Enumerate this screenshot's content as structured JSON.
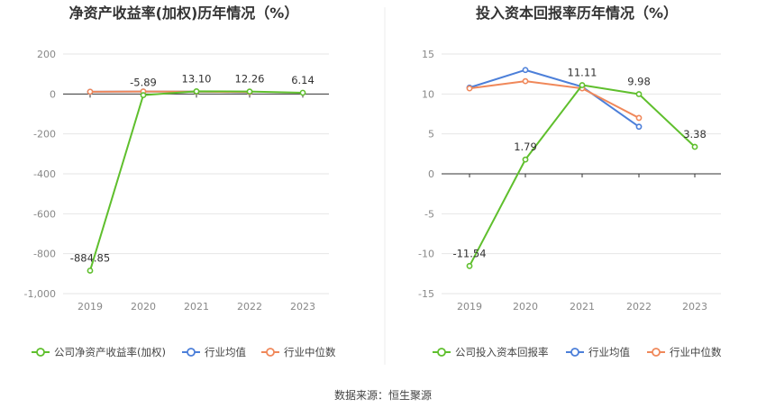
{
  "source": "数据来源：恒生聚源",
  "chart_data": [
    {
      "type": "line",
      "title": "净资产收益率(加权)历年情况（%）",
      "categories": [
        "2019",
        "2020",
        "2021",
        "2022",
        "2023"
      ],
      "yticks": [
        "200",
        "0",
        "-200",
        "-400",
        "-600",
        "-800",
        "-1,000"
      ],
      "ylim": [
        -1000,
        200
      ],
      "grid": true,
      "legend_position": "bottom",
      "series": [
        {
          "name": "公司净资产收益率(加权)",
          "color": "#5fbf2d",
          "values": [
            -884.85,
            -5.89,
            13.1,
            12.26,
            6.14
          ],
          "labels": [
            "-884.85",
            "-5.89",
            "13.10",
            "12.26",
            "6.14"
          ]
        },
        {
          "name": "行业均值",
          "color": "#4c7fd9",
          "values": [
            11.0,
            12.0,
            11.5,
            9.0,
            null
          ]
        },
        {
          "name": "行业中位数",
          "color": "#f0885a",
          "values": [
            11.2,
            12.3,
            11.8,
            9.3,
            null
          ]
        }
      ]
    },
    {
      "type": "line",
      "title": "投入资本回报率历年情况（%）",
      "categories": [
        "2019",
        "2020",
        "2021",
        "2022",
        "2023"
      ],
      "yticks": [
        "15",
        "10",
        "5",
        "0",
        "-5",
        "-10",
        "-15"
      ],
      "ylim": [
        -15,
        15
      ],
      "grid": true,
      "legend_position": "bottom",
      "series": [
        {
          "name": "公司投入资本回报率",
          "color": "#5fbf2d",
          "values": [
            -11.54,
            1.79,
            11.11,
            9.98,
            3.38
          ],
          "labels": [
            "-11.54",
            "1.79",
            "11.11",
            "9.98",
            "3.38"
          ]
        },
        {
          "name": "行业均值",
          "color": "#4c7fd9",
          "values": [
            10.8,
            13.0,
            10.9,
            5.9,
            null
          ]
        },
        {
          "name": "行业中位数",
          "color": "#f0885a",
          "values": [
            10.7,
            11.6,
            10.7,
            7.0,
            null
          ]
        }
      ]
    }
  ]
}
